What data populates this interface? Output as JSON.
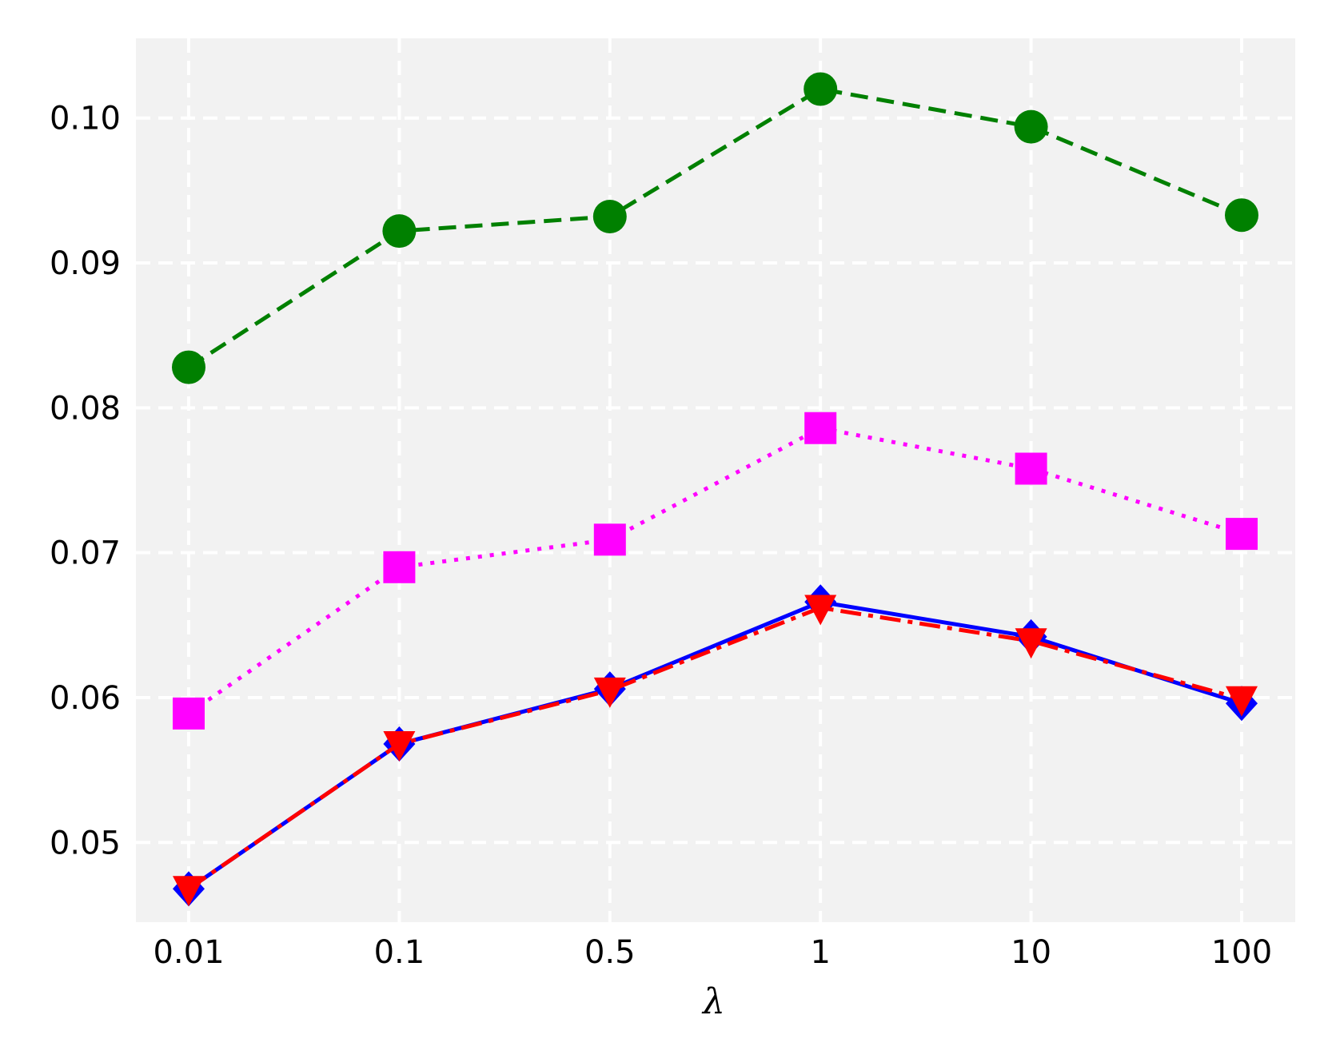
{
  "chart_data": {
    "type": "line",
    "title": "",
    "xlabel": "λ",
    "ylabel": "",
    "categories": [
      "0.01",
      "0.1",
      "0.5",
      "1",
      "10",
      "100"
    ],
    "ylim": [
      0.0445,
      0.1055
    ],
    "yticks": [
      0.05,
      0.06,
      0.07,
      0.08,
      0.09,
      0.1
    ],
    "ytick_labels": [
      "0.05",
      "0.06",
      "0.07",
      "0.08",
      "0.09",
      "0.10"
    ],
    "grid": true,
    "legend": "none",
    "series": [
      {
        "color": "#008000",
        "linestyle": "dashed",
        "marker": "circle",
        "values": [
          0.0828,
          0.0922,
          0.0932,
          0.102,
          0.0994,
          0.0933
        ]
      },
      {
        "color": "#ff00ff",
        "linestyle": "dotted",
        "marker": "square",
        "values": [
          0.0589,
          0.069,
          0.0709,
          0.0786,
          0.0758,
          0.0713
        ]
      },
      {
        "color": "#0000ff",
        "linestyle": "solid",
        "marker": "diamond",
        "values": [
          0.0468,
          0.0568,
          0.0606,
          0.0666,
          0.0642,
          0.0596
        ]
      },
      {
        "color": "#ff0000",
        "linestyle": "dashdot",
        "marker": "triangle-down",
        "values": [
          0.0468,
          0.0568,
          0.0605,
          0.0662,
          0.0639,
          0.0599
        ]
      }
    ]
  }
}
